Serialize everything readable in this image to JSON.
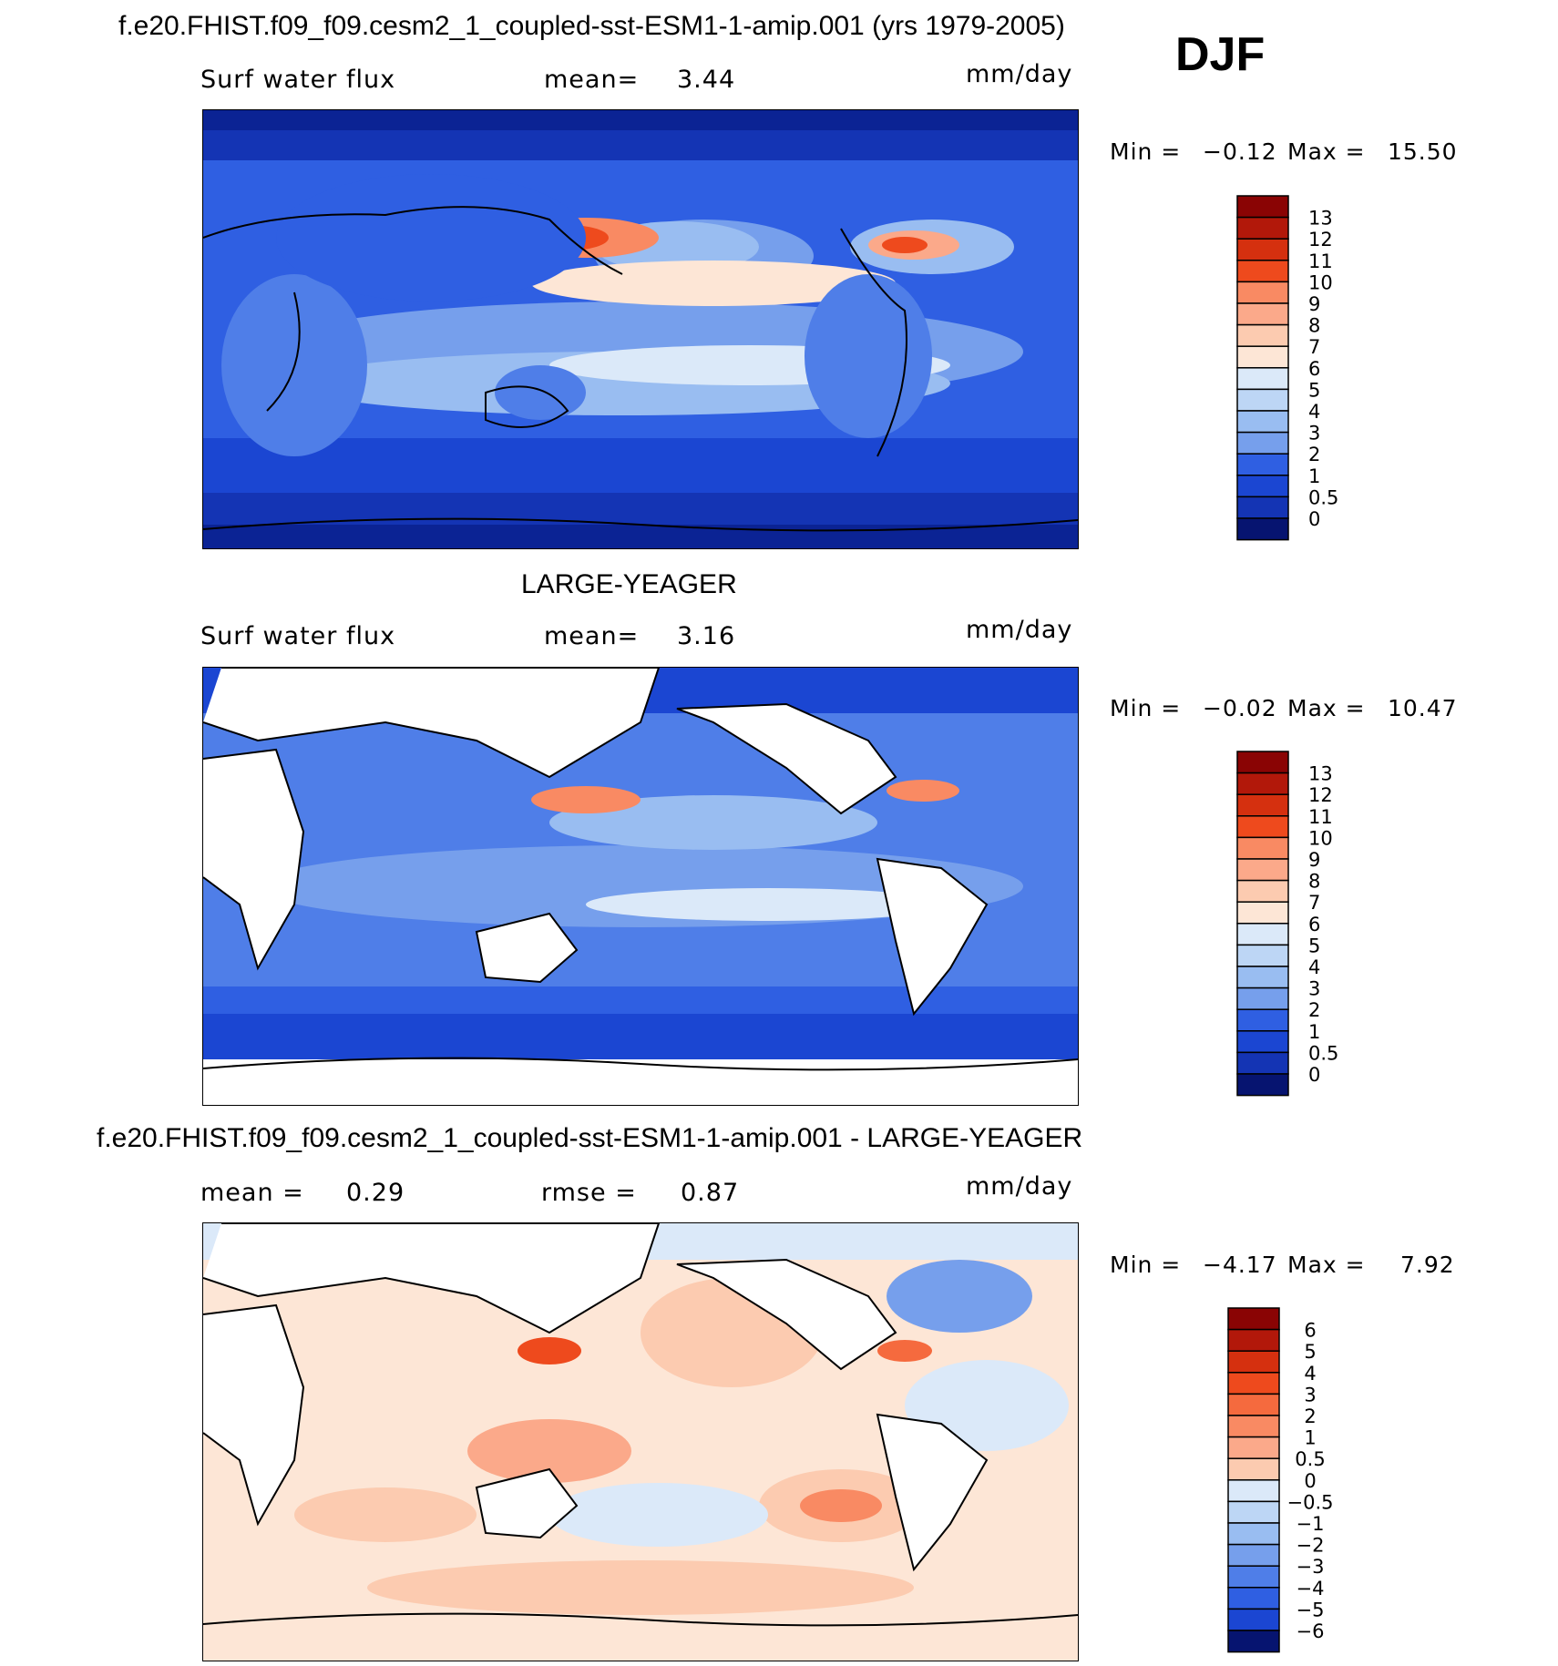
{
  "season": "DJF",
  "colors": {
    "pos": [
      "#fde6d6",
      "#fccbb0",
      "#fba98a",
      "#f98a63",
      "#f56a3e",
      "#ee4a1d",
      "#d5300f",
      "#b2180a",
      "#8a0404"
    ],
    "neg": [
      "#dbe9f9",
      "#bdd6f5",
      "#99bdf1",
      "#769fec",
      "#4f7ee8",
      "#2f5fe2",
      "#1b46d2",
      "#1434b4",
      "#0b2394",
      "#061470"
    ],
    "land": "#ffffff",
    "coast": "#000000"
  },
  "panels": [
    {
      "title": "f.e20.FHIST.f09_f09.cesm2_1_coupled-sst-ESM1-1-amip.001 (yrs 1979-2005)",
      "left_label": "Surf water flux",
      "stat1_label": "mean=",
      "stat1_value": "3.44",
      "stat2_label": "",
      "stat2_value": "",
      "units": "mm/day",
      "min_label": "Min =",
      "min_value": "−0.12",
      "max_label": "Max =",
      "max_value": "15.50",
      "colorbar_levels": [
        "13",
        "12",
        "11",
        "10",
        "9",
        "8",
        "7",
        "6",
        "5",
        "4",
        "3",
        "2",
        "1",
        "0.5",
        "0"
      ]
    },
    {
      "title": "LARGE-YEAGER",
      "left_label": "Surf water flux",
      "stat1_label": "mean=",
      "stat1_value": "3.16",
      "stat2_label": "",
      "stat2_value": "",
      "units": "mm/day",
      "min_label": "Min =",
      "min_value": "−0.02",
      "max_label": "Max =",
      "max_value": "10.47",
      "colorbar_levels": [
        "13",
        "12",
        "11",
        "10",
        "9",
        "8",
        "7",
        "6",
        "5",
        "4",
        "3",
        "2",
        "1",
        "0.5",
        "0"
      ]
    },
    {
      "title": "f.e20.FHIST.f09_f09.cesm2_1_coupled-sst-ESM1-1-amip.001 - LARGE-YEAGER",
      "left_label": "",
      "stat1_label": "mean =",
      "stat1_value": "0.29",
      "stat2_label": "rmse =",
      "stat2_value": "0.87",
      "units": "mm/day",
      "min_label": "Min =",
      "min_value": "−4.17",
      "max_label": "Max =",
      "max_value": "7.92",
      "colorbar_levels": [
        "6",
        "5",
        "4",
        "3",
        "2",
        "1",
        "0.5",
        "0",
        "−0.5",
        "−1",
        "−2",
        "−3",
        "−4",
        "−5",
        "−6"
      ]
    }
  ]
}
